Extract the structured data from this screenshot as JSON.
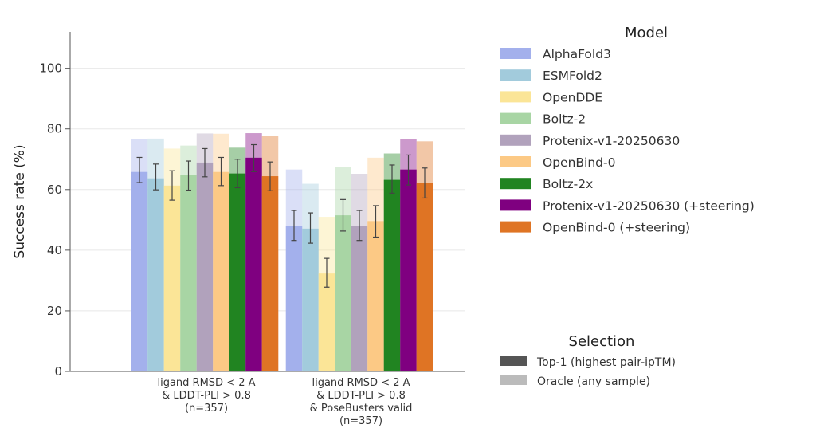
{
  "chart_data": {
    "type": "bar",
    "ylabel": "Success rate (%)",
    "ylim": [
      0,
      112
    ],
    "yticks": [
      0,
      20,
      40,
      60,
      80,
      100
    ],
    "grid": true,
    "categories": [
      {
        "lines": [
          "ligand RMSD < 2 A",
          "& LDDT-PLI > 0.8",
          "(n=357)"
        ]
      },
      {
        "lines": [
          "ligand RMSD < 2 A",
          "& LDDT-PLI > 0.8",
          "& PoseBusters valid",
          "(n=357)"
        ]
      }
    ],
    "series": [
      {
        "name": "AlphaFold3",
        "color": "#a3b0ec",
        "top1": [
          65.8,
          47.9
        ],
        "err_low": [
          62.3,
          43.2
        ],
        "err_high": [
          70.6,
          53.1
        ],
        "oracle": [
          76.7,
          66.6
        ]
      },
      {
        "name": "ESMFold2",
        "color": "#a2cbdc",
        "top1": [
          63.7,
          47.1
        ],
        "err_low": [
          59.9,
          42.3
        ],
        "err_high": [
          68.4,
          52.3
        ],
        "oracle": [
          76.8,
          61.9
        ]
      },
      {
        "name": "OpenDDE",
        "color": "#fbe597",
        "top1": [
          61.3,
          32.3
        ],
        "err_low": [
          56.5,
          27.8
        ],
        "err_high": [
          66.2,
          37.3
        ],
        "oracle": [
          73.5,
          51.0
        ]
      },
      {
        "name": "Boltz-2",
        "color": "#a8d5a4",
        "top1": [
          64.7,
          51.5
        ],
        "err_low": [
          59.8,
          46.3
        ],
        "err_high": [
          69.4,
          56.7
        ],
        "oracle": [
          74.5,
          67.4
        ]
      },
      {
        "name": "Protenix-v1-20250630",
        "color": "#b1a2bc",
        "top1": [
          68.9,
          47.9
        ],
        "err_low": [
          64.2,
          43.2
        ],
        "err_high": [
          73.5,
          53.1
        ],
        "oracle": [
          78.5,
          65.2
        ]
      },
      {
        "name": "OpenBind-0",
        "color": "#fcc985",
        "top1": [
          65.8,
          49.6
        ],
        "err_low": [
          61.3,
          44.3
        ],
        "err_high": [
          70.6,
          54.7
        ],
        "oracle": [
          78.4,
          70.5
        ]
      },
      {
        "name": "Boltz-2x",
        "color": "#218421",
        "top1": [
          65.3,
          63.2
        ],
        "err_low": [
          60.6,
          58.8
        ],
        "err_high": [
          70.0,
          68.1
        ],
        "oracle": [
          73.8,
          71.9
        ]
      },
      {
        "name": "Protenix-v1-20250630 (+steering)",
        "color": "#7f0080",
        "top1": [
          70.5,
          66.6
        ],
        "err_low": [
          65.9,
          61.5
        ],
        "err_high": [
          74.8,
          71.4
        ],
        "oracle": [
          78.6,
          76.7
        ]
      },
      {
        "name": "OpenBind-0 (+steering)",
        "color": "#df7424",
        "top1": [
          64.4,
          62.2
        ],
        "err_low": [
          59.6,
          57.2
        ],
        "err_high": [
          69.1,
          67.1
        ],
        "oracle": [
          77.7,
          75.9
        ]
      }
    ],
    "legend_model": {
      "title": "Model",
      "placement": "top-right"
    },
    "legend_selection": {
      "title": "Selection",
      "placement": "bottom-right",
      "items": [
        {
          "label": "Top-1 (highest pair-ipTM)",
          "color": "#555555"
        },
        {
          "label": "Oracle (any sample)",
          "color": "#bbbbbb"
        }
      ]
    }
  }
}
